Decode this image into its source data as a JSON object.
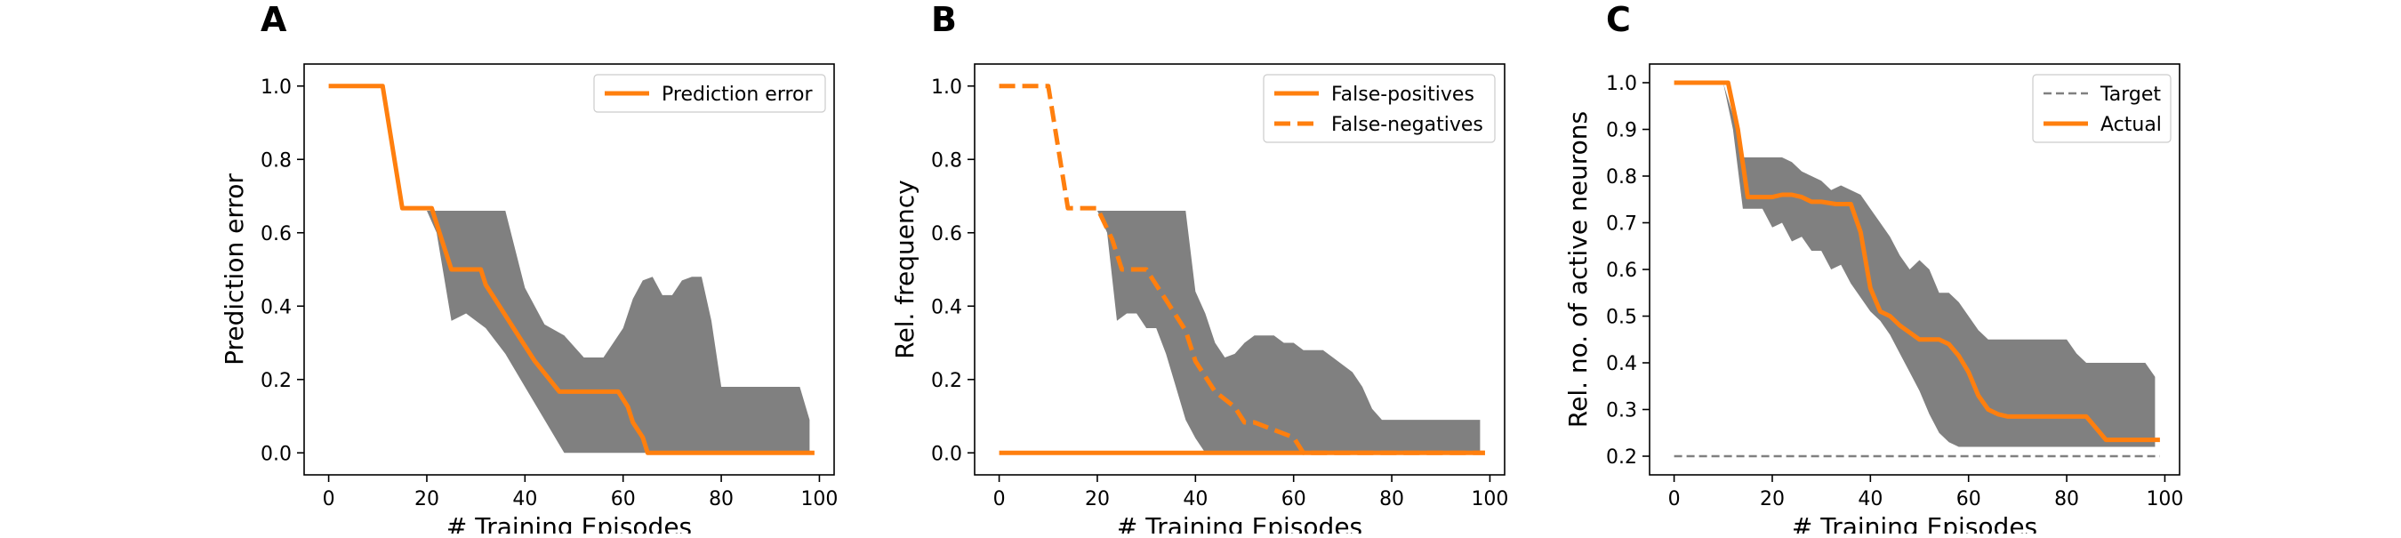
{
  "chart_data": [
    {
      "panel": "A",
      "type": "line",
      "xlabel": "# Training Episodes",
      "ylabel": "Prediction error",
      "xlim": [
        -5,
        103
      ],
      "ylim": [
        -0.06,
        1.06
      ],
      "xticks": [
        "0",
        "20",
        "40",
        "60",
        "80",
        "100"
      ],
      "yticks": [
        "0.0",
        "0.2",
        "0.4",
        "0.6",
        "0.8",
        "1.0"
      ],
      "grid": false,
      "legend_position": "top-right",
      "band": {
        "color": "#808080",
        "x": [
          20,
          22,
          25,
          28,
          32,
          36,
          40,
          44,
          48,
          52,
          56,
          58,
          60,
          62,
          64,
          66,
          68,
          70,
          72,
          74,
          76,
          78,
          80,
          82,
          84,
          86,
          88,
          90,
          92,
          94,
          96,
          98
        ],
        "lower": [
          0.66,
          0.6,
          0.36,
          0.38,
          0.34,
          0.27,
          0.18,
          0.09,
          0.0,
          0.0,
          0.0,
          0.0,
          0.0,
          0.0,
          0.0,
          0.0,
          0.0,
          0.0,
          0.0,
          0.0,
          0.0,
          0.0,
          0.0,
          0.0,
          0.0,
          0.0,
          0.0,
          0.0,
          0.0,
          0.0,
          0.0,
          0.0
        ],
        "upper": [
          0.66,
          0.66,
          0.66,
          0.66,
          0.66,
          0.66,
          0.45,
          0.35,
          0.32,
          0.26,
          0.26,
          0.3,
          0.34,
          0.42,
          0.47,
          0.48,
          0.43,
          0.43,
          0.47,
          0.48,
          0.48,
          0.36,
          0.18,
          0.18,
          0.18,
          0.18,
          0.18,
          0.18,
          0.18,
          0.18,
          0.18,
          0.09
        ]
      },
      "series": [
        {
          "name": "Prediction error",
          "style": "solid",
          "color": "#ff7f0e",
          "x": [
            0,
            11,
            15,
            21,
            23,
            25,
            31,
            32,
            34,
            36,
            38,
            42,
            47,
            59,
            61,
            62,
            64,
            65,
            99
          ],
          "y": [
            1.0,
            1.0,
            0.667,
            0.667,
            0.583,
            0.5,
            0.5,
            0.458,
            0.417,
            0.375,
            0.333,
            0.25,
            0.167,
            0.167,
            0.125,
            0.083,
            0.042,
            0.0,
            0.0
          ]
        }
      ]
    },
    {
      "panel": "B",
      "type": "line",
      "xlabel": "# Training Episodes",
      "ylabel": "Rel. frequency",
      "xlim": [
        -5,
        103
      ],
      "ylim": [
        -0.06,
        1.06
      ],
      "xticks": [
        "0",
        "20",
        "40",
        "60",
        "80",
        "100"
      ],
      "yticks": [
        "0.0",
        "0.2",
        "0.4",
        "0.6",
        "0.8",
        "1.0"
      ],
      "grid": false,
      "legend_position": "top-right",
      "band": {
        "color": "#808080",
        "x": [
          20,
          22,
          24,
          26,
          28,
          30,
          32,
          34,
          36,
          38,
          40,
          42,
          44,
          46,
          48,
          50,
          52,
          54,
          56,
          58,
          60,
          62,
          64,
          66,
          68,
          70,
          72,
          74,
          76,
          78,
          80,
          82,
          84,
          86,
          88,
          90,
          92,
          94,
          96,
          98
        ],
        "lower": [
          0.66,
          0.6,
          0.36,
          0.38,
          0.38,
          0.34,
          0.34,
          0.27,
          0.18,
          0.09,
          0.04,
          0.0,
          0.0,
          0.0,
          0.0,
          0.0,
          0.0,
          0.0,
          0.0,
          0.0,
          0.0,
          0.0,
          0.0,
          0.0,
          0.0,
          0.0,
          0.0,
          0.0,
          0.0,
          0.0,
          0.0,
          0.0,
          0.0,
          0.0,
          0.0,
          0.0,
          0.0,
          0.0,
          0.0,
          0.0
        ],
        "upper": [
          0.66,
          0.66,
          0.66,
          0.66,
          0.66,
          0.66,
          0.66,
          0.66,
          0.66,
          0.66,
          0.44,
          0.38,
          0.3,
          0.26,
          0.27,
          0.3,
          0.32,
          0.32,
          0.32,
          0.3,
          0.3,
          0.28,
          0.28,
          0.28,
          0.26,
          0.24,
          0.22,
          0.18,
          0.12,
          0.09,
          0.09,
          0.09,
          0.09,
          0.09,
          0.09,
          0.09,
          0.09,
          0.09,
          0.09,
          0.09
        ]
      },
      "series": [
        {
          "name": "False-positives",
          "style": "solid",
          "color": "#ff7f0e",
          "x": [
            0,
            36,
            38,
            40,
            44,
            60,
            99
          ],
          "y": [
            0.0,
            0.0,
            0.0,
            0.0,
            0.0,
            0.0,
            0.0
          ]
        },
        {
          "name": "False-negatives",
          "style": "dashed",
          "color": "#ff7f0e",
          "x": [
            0,
            10,
            14,
            20,
            23,
            25,
            30,
            32,
            34,
            36,
            38,
            40,
            42,
            44,
            48,
            50,
            52,
            60,
            62,
            99
          ],
          "y": [
            1.0,
            1.0,
            0.667,
            0.667,
            0.583,
            0.5,
            0.5,
            0.458,
            0.417,
            0.375,
            0.333,
            0.25,
            0.208,
            0.167,
            0.125,
            0.083,
            0.083,
            0.042,
            0.0,
            0.0
          ]
        }
      ]
    },
    {
      "panel": "C",
      "type": "line",
      "xlabel": "# Training Episodes",
      "ylabel": "Rel. no. of active neurons",
      "xlim": [
        -5,
        103
      ],
      "ylim": [
        0.16,
        1.04
      ],
      "xticks": [
        "0",
        "20",
        "40",
        "60",
        "80",
        "100"
      ],
      "yticks": [
        "0.2",
        "0.3",
        "0.4",
        "0.5",
        "0.6",
        "0.7",
        "0.8",
        "0.9",
        "1.0"
      ],
      "grid": false,
      "legend_position": "top-right",
      "band": {
        "color": "#808080",
        "x": [
          10,
          12,
          14,
          16,
          18,
          20,
          22,
          24,
          26,
          28,
          30,
          32,
          34,
          36,
          38,
          40,
          42,
          44,
          46,
          48,
          50,
          52,
          54,
          56,
          58,
          60,
          62,
          64,
          66,
          68,
          70,
          72,
          74,
          76,
          78,
          80,
          82,
          84,
          86,
          88,
          90,
          92,
          94,
          96,
          98
        ],
        "lower": [
          1.0,
          0.9,
          0.73,
          0.73,
          0.73,
          0.69,
          0.7,
          0.66,
          0.67,
          0.64,
          0.64,
          0.6,
          0.61,
          0.57,
          0.54,
          0.51,
          0.49,
          0.46,
          0.42,
          0.38,
          0.34,
          0.29,
          0.25,
          0.23,
          0.22,
          0.22,
          0.22,
          0.22,
          0.22,
          0.22,
          0.22,
          0.22,
          0.22,
          0.22,
          0.22,
          0.22,
          0.22,
          0.22,
          0.22,
          0.22,
          0.22,
          0.22,
          0.22,
          0.22,
          0.22
        ],
        "upper": [
          1.0,
          0.93,
          0.84,
          0.84,
          0.84,
          0.84,
          0.84,
          0.83,
          0.81,
          0.8,
          0.79,
          0.77,
          0.78,
          0.77,
          0.76,
          0.73,
          0.7,
          0.67,
          0.63,
          0.6,
          0.62,
          0.6,
          0.55,
          0.55,
          0.53,
          0.5,
          0.47,
          0.45,
          0.45,
          0.45,
          0.45,
          0.45,
          0.45,
          0.45,
          0.45,
          0.45,
          0.42,
          0.4,
          0.4,
          0.4,
          0.4,
          0.4,
          0.4,
          0.4,
          0.37
        ]
      },
      "series": [
        {
          "name": "Target",
          "style": "dashed",
          "color": "#808080",
          "x": [
            0,
            99
          ],
          "y": [
            0.2,
            0.2
          ]
        },
        {
          "name": "Actual",
          "style": "solid",
          "color": "#ff7f0e",
          "x": [
            0,
            11,
            13,
            15,
            20,
            22,
            24,
            26,
            28,
            30,
            33,
            36,
            38,
            40,
            42,
            44,
            46,
            50,
            54,
            56,
            58,
            60,
            62,
            64,
            66,
            68,
            70,
            84,
            86,
            88,
            90,
            99
          ],
          "y": [
            1.0,
            1.0,
            0.9,
            0.755,
            0.755,
            0.76,
            0.76,
            0.755,
            0.745,
            0.745,
            0.74,
            0.74,
            0.68,
            0.56,
            0.51,
            0.5,
            0.48,
            0.45,
            0.45,
            0.44,
            0.415,
            0.38,
            0.33,
            0.3,
            0.29,
            0.285,
            0.285,
            0.285,
            0.26,
            0.235,
            0.235,
            0.235
          ]
        }
      ]
    }
  ]
}
